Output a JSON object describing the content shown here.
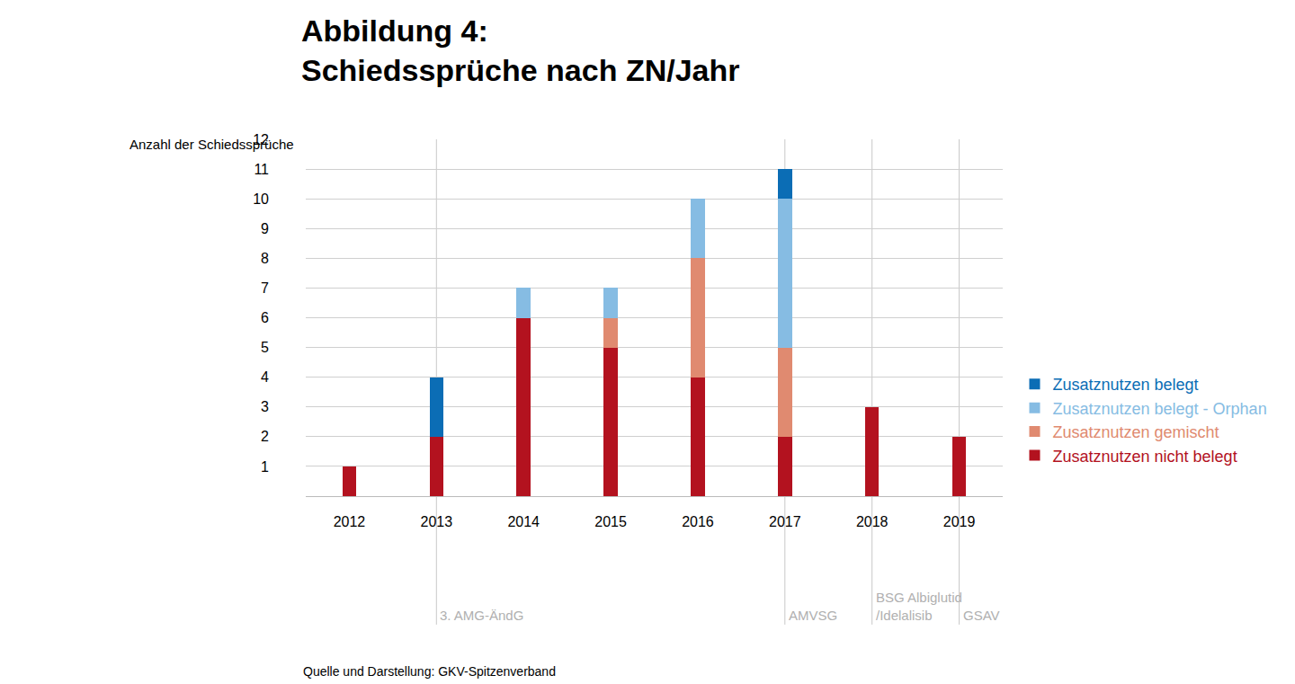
{
  "chart_data": {
    "type": "bar",
    "title": "Abbildung 4:\nSchiedssprüche nach ZN/Jahr",
    "y_label": "Anzahl der Schiedssprüche",
    "categories": [
      "2012",
      "2013",
      "2014",
      "2015",
      "2016",
      "2017",
      "2018",
      "2019"
    ],
    "series": [
      {
        "name": "Zusatznutzen nicht belegt",
        "color": "#b3121f",
        "values": [
          1,
          2,
          6,
          5,
          4,
          2,
          3,
          2
        ]
      },
      {
        "name": "Zusatznutzen gemischt",
        "color": "#e08a70",
        "values": [
          0,
          0,
          0,
          1,
          4,
          3,
          0,
          0
        ]
      },
      {
        "name": "Zusatznutzen belegt - Orphan",
        "color": "#86bce3",
        "values": [
          0,
          0,
          1,
          1,
          2,
          5,
          0,
          0
        ]
      },
      {
        "name": "Zusatznutzen belegt",
        "color": "#0b6db5",
        "values": [
          0,
          2,
          0,
          0,
          0,
          1,
          0,
          0
        ]
      }
    ],
    "ylim": [
      0,
      12
    ],
    "yticks": [
      1,
      2,
      3,
      4,
      5,
      6,
      7,
      8,
      9,
      10,
      11,
      12
    ],
    "grid": true,
    "stacked": true,
    "legend": "right",
    "annotations": [
      {
        "category": "2013",
        "text": "3. AMG-ÄndG"
      },
      {
        "category": "2017",
        "text": "AMVSG"
      },
      {
        "category": "2018",
        "text": "BSG Albiglutid\n/Idelalisib"
      },
      {
        "category": "2019",
        "text": "GSAV"
      }
    ],
    "source": "Quelle und Darstellung: GKV-Spitzenverband"
  }
}
